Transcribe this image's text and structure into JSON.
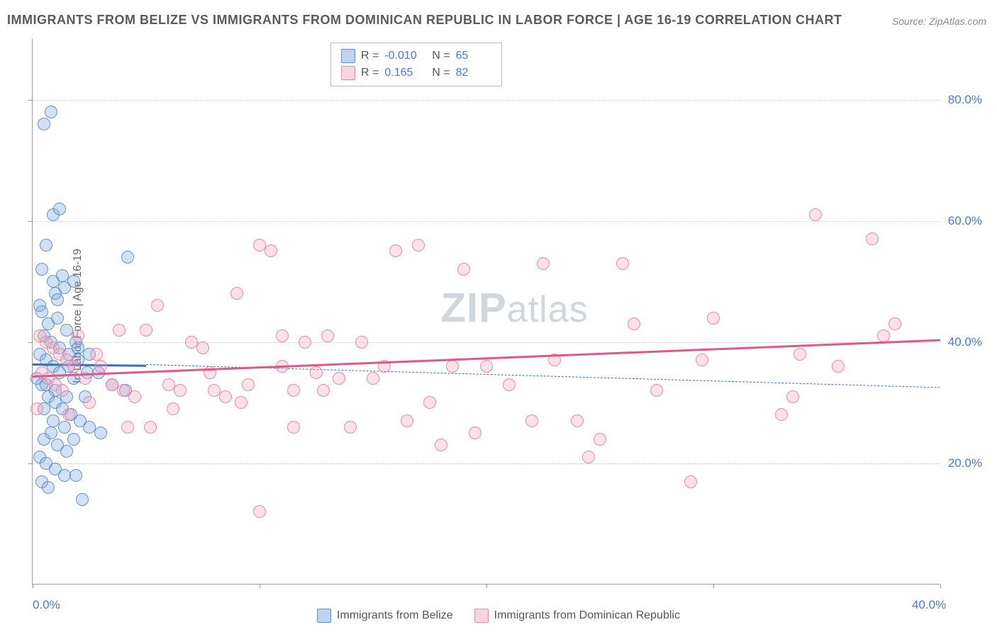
{
  "title": "IMMIGRANTS FROM BELIZE VS IMMIGRANTS FROM DOMINICAN REPUBLIC IN LABOR FORCE | AGE 16-19 CORRELATION CHART",
  "source": "Source: ZipAtlas.com",
  "watermark": {
    "bold": "ZIP",
    "rest": "atlas"
  },
  "y_axis_title": "In Labor Force | Age 16-19",
  "chart": {
    "type": "scatter",
    "xlim": [
      0,
      40
    ],
    "ylim": [
      0,
      90
    ],
    "x_ticks": [
      0,
      10,
      20,
      30,
      40
    ],
    "y_ticks": [
      20,
      40,
      60,
      80
    ],
    "x_labels_visible": {
      "0": "0.0%",
      "40": "40.0%"
    },
    "y_labels_visible": {
      "20": "20.0%",
      "40": "40.0%",
      "60": "60.0%",
      "80": "80.0%"
    },
    "grid_color": "#cccccc",
    "background_color": "#ffffff",
    "marker_size": 18,
    "series": [
      {
        "name": "Immigrants from Belize",
        "short": "s0",
        "marker_fill": "rgba(123,169,222,0.35)",
        "marker_stroke": "rgba(88,139,201,0.9)",
        "trend_color": "#3c6fb5",
        "R": "-0.010",
        "N": "65",
        "trend": {
          "x0": 0,
          "y0": 36.5,
          "x1": 5,
          "y1": 36.3
        },
        "trend_dash": {
          "x0": 5,
          "y0": 36.3,
          "x1": 40,
          "y1": 32.5
        },
        "points": [
          [
            0.5,
            76
          ],
          [
            0.8,
            78
          ],
          [
            0.9,
            61
          ],
          [
            1.2,
            62
          ],
          [
            0.6,
            56
          ],
          [
            1.0,
            48
          ],
          [
            1.4,
            49
          ],
          [
            1.8,
            50
          ],
          [
            4.2,
            54
          ],
          [
            0.4,
            45
          ],
          [
            0.7,
            43
          ],
          [
            1.1,
            44
          ],
          [
            1.5,
            42
          ],
          [
            1.9,
            40
          ],
          [
            0.3,
            38
          ],
          [
            0.6,
            37
          ],
          [
            0.9,
            36
          ],
          [
            1.2,
            35
          ],
          [
            1.6,
            36
          ],
          [
            2.0,
            37
          ],
          [
            2.4,
            35
          ],
          [
            2.9,
            35
          ],
          [
            3.5,
            33
          ],
          [
            4.1,
            32
          ],
          [
            0.4,
            33
          ],
          [
            0.7,
            31
          ],
          [
            1.0,
            30
          ],
          [
            1.3,
            29
          ],
          [
            1.7,
            28
          ],
          [
            2.1,
            27
          ],
          [
            2.5,
            26
          ],
          [
            3.0,
            25
          ],
          [
            0.5,
            24
          ],
          [
            0.8,
            25
          ],
          [
            1.1,
            23
          ],
          [
            1.5,
            22
          ],
          [
            0.3,
            21
          ],
          [
            0.6,
            20
          ],
          [
            1.0,
            19
          ],
          [
            1.4,
            18
          ],
          [
            1.9,
            18
          ],
          [
            0.4,
            17
          ],
          [
            0.7,
            16
          ],
          [
            2.2,
            14
          ],
          [
            0.5,
            41
          ],
          [
            0.8,
            40
          ],
          [
            1.2,
            39
          ],
          [
            1.6,
            38
          ],
          [
            2.0,
            39
          ],
          [
            2.5,
            38
          ],
          [
            0.3,
            46
          ],
          [
            1.1,
            47
          ],
          [
            0.4,
            52
          ],
          [
            0.9,
            50
          ],
          [
            1.3,
            51
          ],
          [
            0.5,
            29
          ],
          [
            0.9,
            27
          ],
          [
            1.4,
            26
          ],
          [
            1.8,
            24
          ],
          [
            0.2,
            34
          ],
          [
            0.6,
            33
          ],
          [
            1.0,
            32
          ],
          [
            1.5,
            31
          ],
          [
            1.8,
            34
          ],
          [
            2.3,
            31
          ]
        ]
      },
      {
        "name": "Immigrants from Dominican Republic",
        "short": "s1",
        "marker_fill": "rgba(244,168,189,0.35)",
        "marker_stroke": "rgba(233,130,160,0.9)",
        "trend_color": "#e0588b",
        "R": "0.165",
        "N": "82",
        "trend": {
          "x0": 0,
          "y0": 34.5,
          "x1": 40,
          "y1": 40.5
        },
        "points": [
          [
            0.3,
            41
          ],
          [
            0.6,
            40
          ],
          [
            0.9,
            39
          ],
          [
            1.2,
            38
          ],
          [
            1.5,
            37
          ],
          [
            1.8,
            36
          ],
          [
            0.4,
            35
          ],
          [
            0.7,
            34
          ],
          [
            1.0,
            33
          ],
          [
            1.3,
            32
          ],
          [
            1.6,
            28
          ],
          [
            2.5,
            30
          ],
          [
            3.0,
            36
          ],
          [
            3.5,
            33
          ],
          [
            4.0,
            32
          ],
          [
            4.5,
            31
          ],
          [
            5.0,
            42
          ],
          [
            5.5,
            46
          ],
          [
            6.0,
            33
          ],
          [
            6.5,
            32
          ],
          [
            5.2,
            26
          ],
          [
            7.0,
            40
          ],
          [
            7.5,
            39
          ],
          [
            8.0,
            32
          ],
          [
            8.5,
            31
          ],
          [
            9.0,
            48
          ],
          [
            9.5,
            33
          ],
          [
            10.0,
            56
          ],
          [
            10.5,
            55
          ],
          [
            10.0,
            12
          ],
          [
            11.0,
            41
          ],
          [
            11.0,
            36
          ],
          [
            11.5,
            32
          ],
          [
            11.5,
            26
          ],
          [
            12.0,
            40
          ],
          [
            12.5,
            35
          ],
          [
            13.0,
            41
          ],
          [
            13.5,
            34
          ],
          [
            14.0,
            26
          ],
          [
            15.0,
            34
          ],
          [
            15.5,
            36
          ],
          [
            16.0,
            55
          ],
          [
            16.5,
            27
          ],
          [
            17.0,
            56
          ],
          [
            18.0,
            23
          ],
          [
            18.5,
            36
          ],
          [
            19.0,
            52
          ],
          [
            19.5,
            25
          ],
          [
            20.0,
            36
          ],
          [
            21.0,
            33
          ],
          [
            22.0,
            27
          ],
          [
            22.5,
            53
          ],
          [
            23.0,
            37
          ],
          [
            24.0,
            27
          ],
          [
            24.5,
            21
          ],
          [
            25.0,
            24
          ],
          [
            26.0,
            53
          ],
          [
            26.5,
            43
          ],
          [
            27.5,
            32
          ],
          [
            29.0,
            17
          ],
          [
            29.5,
            37
          ],
          [
            30.0,
            44
          ],
          [
            33.0,
            28
          ],
          [
            33.5,
            31
          ],
          [
            33.8,
            38
          ],
          [
            34.5,
            61
          ],
          [
            35.5,
            36
          ],
          [
            37.0,
            57
          ],
          [
            37.5,
            41
          ],
          [
            38.0,
            43
          ],
          [
            3.8,
            42
          ],
          [
            4.2,
            26
          ],
          [
            6.2,
            29
          ],
          [
            7.8,
            35
          ],
          [
            9.2,
            30
          ],
          [
            12.8,
            32
          ],
          [
            14.5,
            40
          ],
          [
            17.5,
            30
          ],
          [
            2.0,
            41
          ],
          [
            2.3,
            34
          ],
          [
            2.8,
            38
          ],
          [
            0.2,
            29
          ]
        ]
      }
    ]
  },
  "bottom_legend": [
    {
      "series": 0,
      "label": "Immigrants from Belize"
    },
    {
      "series": 1,
      "label": "Immigrants from Dominican Republic"
    }
  ]
}
